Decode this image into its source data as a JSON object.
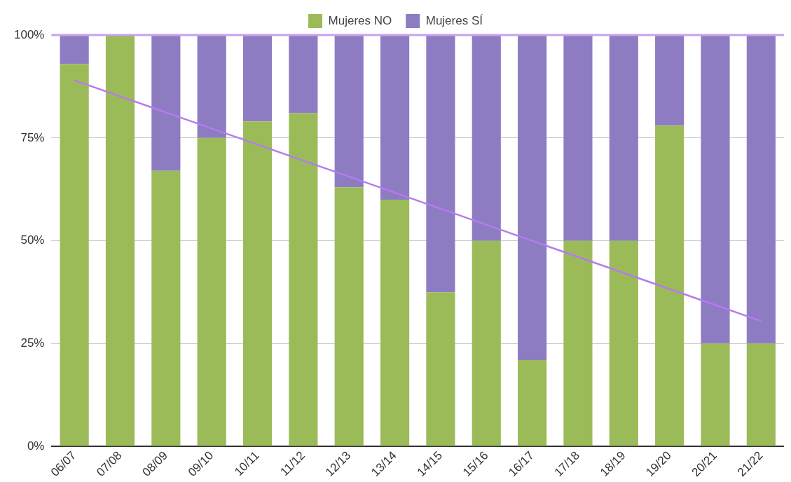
{
  "chart_data": {
    "type": "bar",
    "stacked": true,
    "categories": [
      "06/07",
      "07/08",
      "08/09",
      "09/10",
      "10/11",
      "11/12",
      "12/13",
      "13/14",
      "14/15",
      "15/16",
      "16/17",
      "17/18",
      "18/19",
      "19/20",
      "20/21",
      "21/22"
    ],
    "series": [
      {
        "name": "Mujeres NO",
        "color": "#9bbb59",
        "values": [
          93,
          100,
          67,
          75,
          79,
          81,
          63,
          60,
          37.5,
          50,
          21,
          50,
          50,
          78,
          25,
          25
        ]
      },
      {
        "name": "Mujeres SÍ",
        "color": "#8e7cc3",
        "values": [
          7,
          0,
          33,
          25,
          21,
          19,
          37,
          40,
          62.5,
          50,
          79,
          50,
          50,
          22,
          75,
          75
        ]
      },
      {
        "type": "line",
        "color": "#b57bee",
        "x": [
          "06/07",
          "21/22"
        ],
        "values": [
          89,
          30.5
        ]
      }
    ],
    "ylim": [
      0,
      100
    ],
    "yticks": [
      {
        "value": 0,
        "label": "0%"
      },
      {
        "value": 25,
        "label": "25%"
      },
      {
        "value": 50,
        "label": "50%"
      },
      {
        "value": 75,
        "label": "75%"
      },
      {
        "value": 100,
        "label": "100%"
      }
    ],
    "ref_lines": [
      {
        "axis": "y",
        "value": 100,
        "color": "#c9a0f0"
      }
    ],
    "grid": "y",
    "legend": "top",
    "marker": "none"
  }
}
